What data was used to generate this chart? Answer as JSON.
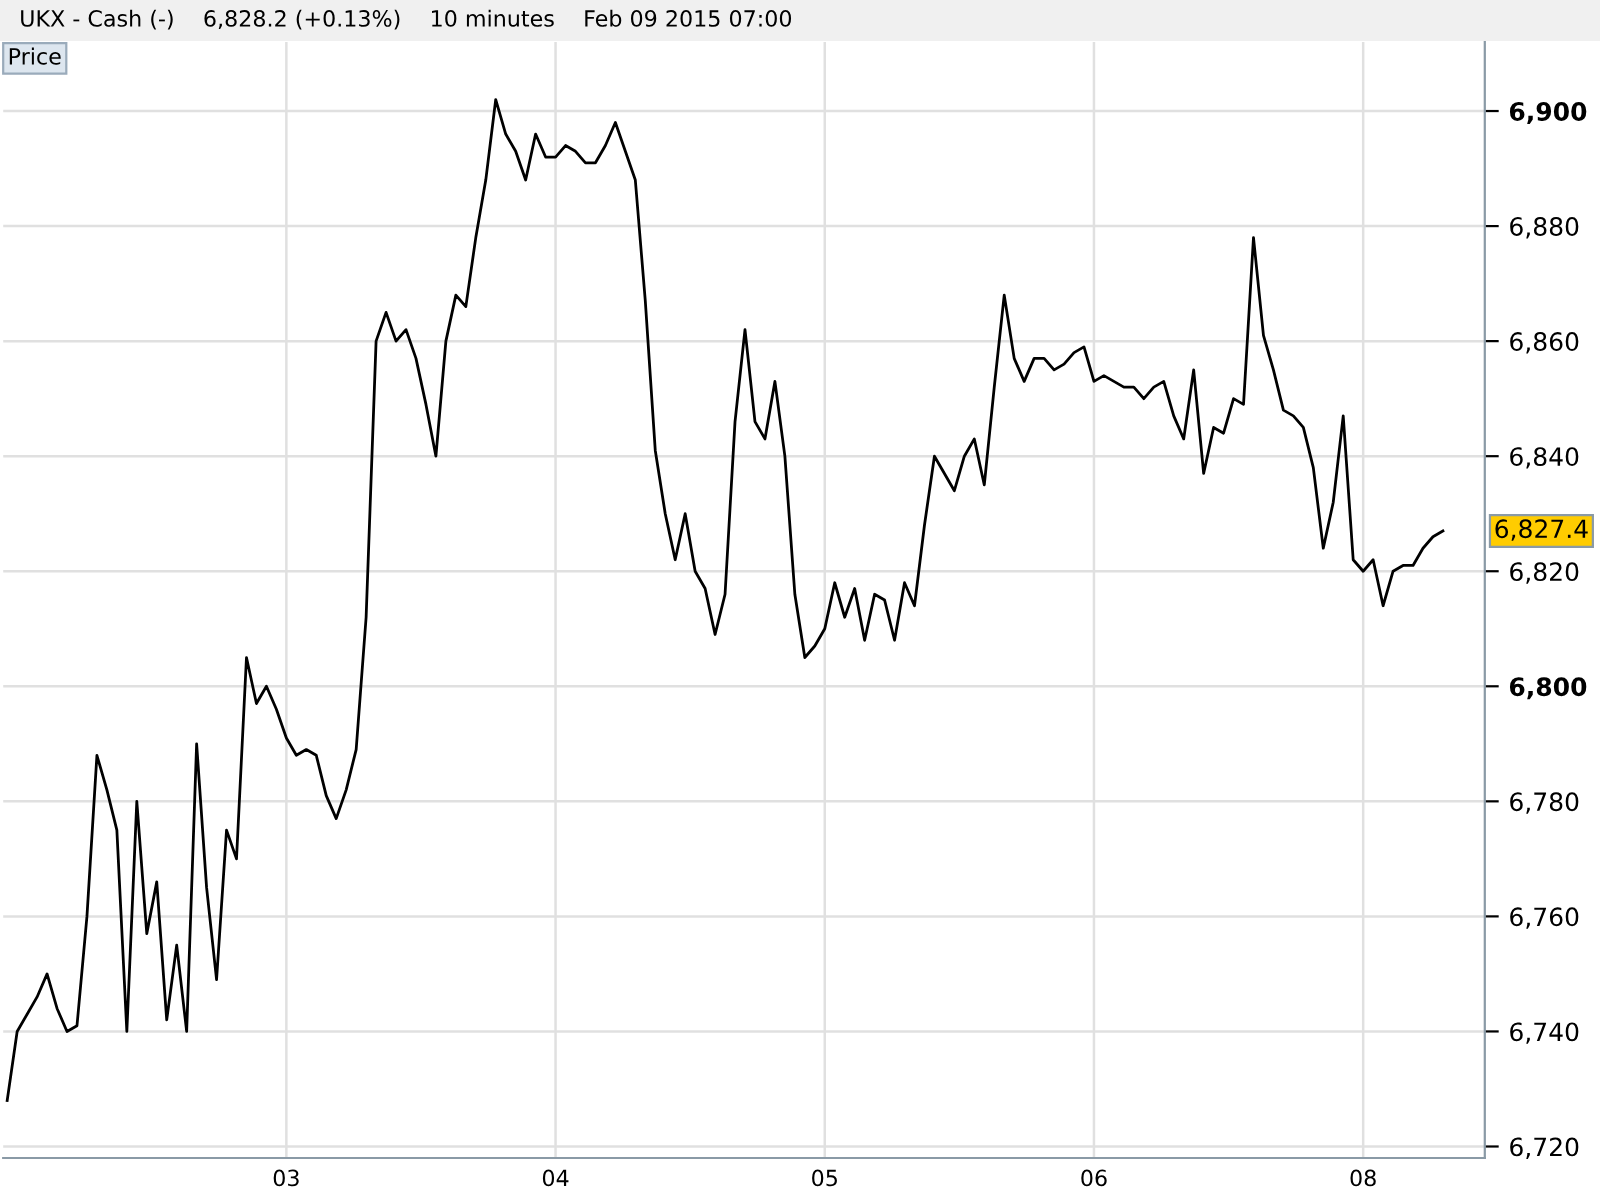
{
  "chart_data": {
    "type": "line",
    "title": "UKX - Cash (-)    6,828.2 (+0.13%)    10 minutes    Feb 09 2015 07:00",
    "annotations": [
      "Price",
      "6,827.4"
    ],
    "categories": [
      null,
      null,
      null,
      null,
      null,
      null,
      null,
      null,
      null,
      null,
      null,
      null,
      null,
      null,
      null,
      null,
      null,
      null,
      null,
      null,
      null,
      null,
      null,
      null,
      null,
      null,
      null,
      null,
      "03",
      null,
      null,
      null,
      null,
      null,
      null,
      null,
      null,
      null,
      null,
      null,
      null,
      null,
      null,
      null,
      null,
      null,
      null,
      null,
      null,
      null,
      null,
      null,
      null,
      null,
      null,
      "04",
      null,
      null,
      null,
      null,
      null,
      null,
      null,
      null,
      null,
      null,
      null,
      null,
      null,
      null,
      null,
      null,
      null,
      null,
      null,
      null,
      null,
      null,
      null,
      null,
      null,
      null,
      "05",
      null,
      null,
      null,
      null,
      null,
      null,
      null,
      null,
      null,
      null,
      null,
      null,
      null,
      null,
      null,
      null,
      null,
      null,
      null,
      null,
      null,
      null,
      null,
      null,
      null,
      null,
      "06",
      null,
      null,
      null,
      null,
      null,
      null,
      null,
      null,
      null,
      null,
      null,
      null,
      null,
      null,
      null,
      null,
      null,
      null,
      null,
      null,
      null,
      null,
      null,
      null,
      null,
      null,
      "08",
      null,
      null,
      null,
      null,
      null,
      null,
      null,
      null
    ],
    "series": [
      {
        "color": "#000000",
        "values": [
          6728,
          6740,
          6743,
          6746,
          6750,
          6744,
          6740,
          6741,
          6760,
          6788,
          6782,
          6775,
          6740,
          6780,
          6757,
          6766,
          6742,
          6755,
          6740,
          6790,
          6765,
          6749,
          6775,
          6770,
          6805,
          6797,
          6800,
          6796,
          6791,
          6788,
          6789,
          6788,
          6781,
          6777,
          6782,
          6789,
          6812,
          6860,
          6865,
          6860,
          6862,
          6857,
          6849,
          6840,
          6860,
          6868,
          6866,
          6878,
          6888,
          6902,
          6896,
          6893,
          6888,
          6896,
          6892,
          6892,
          6894,
          6893,
          6891,
          6891,
          6894,
          6898,
          6893,
          6888,
          6867,
          6841,
          6830,
          6822,
          6830,
          6820,
          6817,
          6809,
          6816,
          6846,
          6862,
          6846,
          6843,
          6853,
          6840,
          6816,
          6805,
          6807,
          6810,
          6818,
          6812,
          6817,
          6808,
          6816,
          6815,
          6808,
          6818,
          6814,
          6828,
          6840,
          6837,
          6834,
          6840,
          6843,
          6835,
          6852,
          6868,
          6857,
          6853,
          6857,
          6857,
          6855,
          6856,
          6858,
          6859,
          6853,
          6854,
          6853,
          6852,
          6852,
          6850,
          6852,
          6853,
          6847,
          6843,
          6855,
          6837,
          6845,
          6844,
          6850,
          6849,
          6878,
          6861,
          6855,
          6848,
          6847,
          6845,
          6838,
          6824,
          6832,
          6847,
          6822,
          6820,
          6822,
          6814,
          6820,
          6821,
          6821,
          6824,
          6826,
          6827
        ]
      }
    ],
    "ylim": [
      6718,
      6912
    ],
    "yticks": [
      {
        "value": 6720,
        "label": "6,720"
      },
      {
        "value": 6740,
        "label": "6,740"
      },
      {
        "value": 6760,
        "label": "6,760"
      },
      {
        "value": 6780,
        "label": "6,780"
      },
      {
        "value": 6800,
        "label": "6,800"
      },
      {
        "value": 6820,
        "label": "6,820"
      },
      {
        "value": 6840,
        "label": "6,840"
      },
      {
        "value": 6860,
        "label": "6,860"
      },
      {
        "value": 6880,
        "label": "6,880"
      },
      {
        "value": 6900,
        "label": "6,900"
      }
    ],
    "grid": true,
    "marker": "none",
    "line_style": "solid"
  }
}
